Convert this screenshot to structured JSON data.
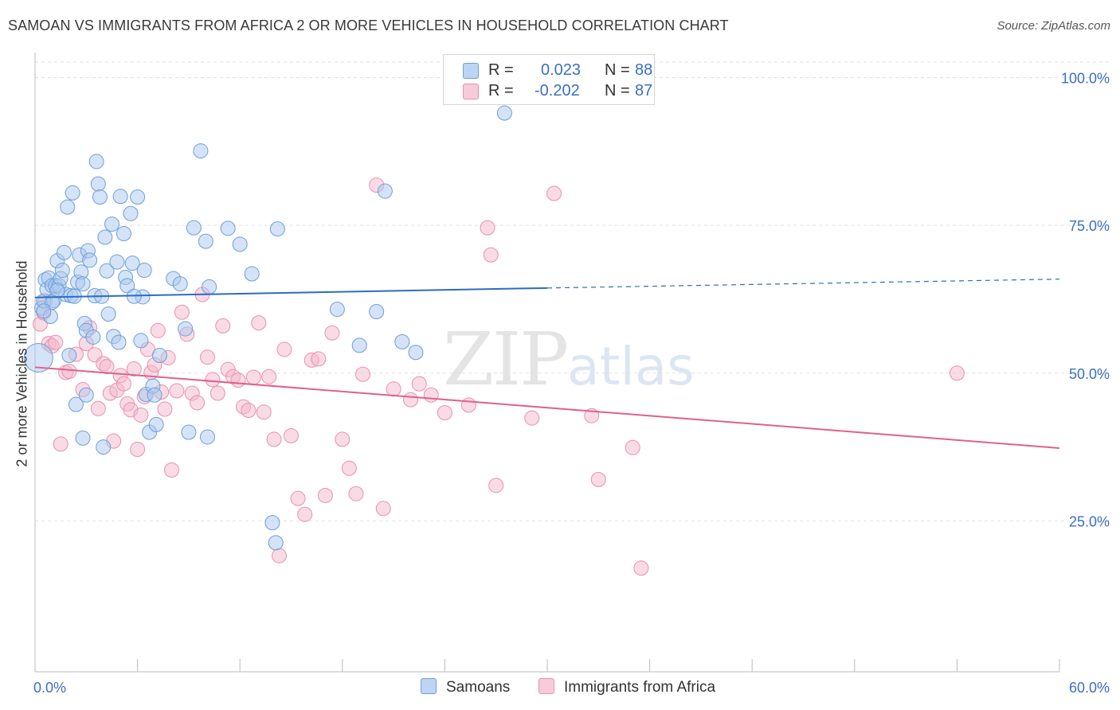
{
  "title": "SAMOAN VS IMMIGRANTS FROM AFRICA 2 OR MORE VEHICLES IN HOUSEHOLD CORRELATION CHART",
  "source": "Source: ZipAtlas.com",
  "watermark": {
    "zip": "ZIP",
    "atlas": "atlas"
  },
  "legend": {
    "rows": [
      {
        "r_label": "R =",
        "r_value": "0.023",
        "n_label": "N =",
        "n_value": "88",
        "color": "#a9c8ef"
      },
      {
        "r_label": "R =",
        "r_value": "-0.202",
        "n_label": "N =",
        "n_value": "87",
        "color": "#f4b8cb"
      }
    ]
  },
  "bottom_legend": {
    "series1": "Samoans",
    "series2": "Immigrants from Africa"
  },
  "colors": {
    "samoans_fill": "#a9c8ef",
    "samoans_stroke": "#6f9fd8",
    "samoans_line": "#2b6cc4",
    "africa_fill": "#f4b8cb",
    "africa_stroke": "#e891ad",
    "africa_line": "#e0608f",
    "tick_label": "#3b6fc4"
  },
  "chart_data": {
    "type": "scatter",
    "title": "SAMOAN VS IMMIGRANTS FROM AFRICA 2 OR MORE VEHICLES IN HOUSEHOLD CORRELATION CHART",
    "xlabel": "",
    "ylabel": "2 or more Vehicles in Household",
    "xlim": [
      0,
      60
    ],
    "ylim": [
      0,
      105
    ],
    "x_tick_labels": [
      "0.0%",
      "60.0%"
    ],
    "y_ticks": [
      25,
      50,
      75,
      100
    ],
    "y_tick_labels": [
      "25.0%",
      "50.0%",
      "75.0%",
      "100.0%"
    ],
    "grid": true,
    "legend_position": "top-center",
    "series": [
      {
        "name": "Samoans",
        "r": 0.023,
        "n": 88,
        "trend": {
          "x0": 0,
          "y0": 62.8,
          "x1": 30,
          "y1": 64.4,
          "dashed_to_x": 60,
          "dashed_to_y": 65.9
        },
        "points": [
          [
            0.2,
            52.6
          ],
          [
            0.4,
            61.0
          ],
          [
            0.5,
            62.2
          ],
          [
            0.6,
            65.8
          ],
          [
            0.7,
            64.2
          ],
          [
            0.8,
            66.1
          ],
          [
            0.9,
            59.6
          ],
          [
            1.0,
            64.8
          ],
          [
            1.1,
            62.3
          ],
          [
            1.2,
            64.8
          ],
          [
            1.3,
            69.0
          ],
          [
            1.4,
            64.8
          ],
          [
            1.5,
            66.0
          ],
          [
            1.6,
            67.4
          ],
          [
            1.7,
            70.4
          ],
          [
            1.8,
            63.3
          ],
          [
            1.9,
            78.1
          ],
          [
            2.0,
            53.0
          ],
          [
            2.1,
            63.1
          ],
          [
            2.2,
            80.5
          ],
          [
            2.3,
            63.0
          ],
          [
            2.5,
            65.4
          ],
          [
            2.6,
            70.0
          ],
          [
            2.7,
            67.1
          ],
          [
            2.8,
            65.1
          ],
          [
            2.9,
            58.4
          ],
          [
            3.0,
            57.2
          ],
          [
            3.1,
            70.7
          ],
          [
            3.2,
            69.1
          ],
          [
            3.4,
            56.1
          ],
          [
            3.5,
            63.1
          ],
          [
            3.6,
            85.8
          ],
          [
            3.7,
            82.0
          ],
          [
            3.8,
            79.8
          ],
          [
            3.9,
            63.0
          ],
          [
            4.1,
            73.0
          ],
          [
            4.2,
            67.3
          ],
          [
            4.3,
            60.0
          ],
          [
            4.5,
            75.2
          ],
          [
            4.6,
            56.2
          ],
          [
            4.8,
            68.8
          ],
          [
            4.9,
            55.2
          ],
          [
            5.0,
            79.9
          ],
          [
            5.2,
            73.6
          ],
          [
            5.3,
            66.2
          ],
          [
            5.4,
            64.8
          ],
          [
            5.6,
            77.0
          ],
          [
            5.7,
            68.6
          ],
          [
            6.0,
            79.8
          ],
          [
            6.2,
            55.5
          ],
          [
            6.3,
            62.9
          ],
          [
            6.4,
            67.4
          ],
          [
            6.5,
            46.4
          ],
          [
            6.7,
            40.0
          ],
          [
            6.9,
            47.8
          ],
          [
            7.1,
            41.3
          ],
          [
            7.3,
            53.0
          ],
          [
            8.1,
            66.0
          ],
          [
            8.5,
            65.1
          ],
          [
            8.8,
            57.5
          ],
          [
            9.3,
            74.6
          ],
          [
            9.7,
            87.6
          ],
          [
            10.0,
            72.3
          ],
          [
            10.2,
            64.6
          ],
          [
            11.3,
            74.5
          ],
          [
            12.0,
            71.8
          ],
          [
            12.7,
            66.8
          ],
          [
            13.9,
            24.7
          ],
          [
            14.2,
            74.4
          ],
          [
            17.7,
            60.8
          ],
          [
            19.0,
            54.7
          ],
          [
            20.0,
            60.4
          ],
          [
            20.5,
            80.8
          ],
          [
            21.5,
            55.3
          ],
          [
            22.3,
            53.5
          ],
          [
            27.5,
            94.0
          ],
          [
            2.8,
            39.0
          ],
          [
            4.0,
            37.5
          ],
          [
            2.4,
            44.7
          ],
          [
            3.0,
            46.3
          ],
          [
            7.0,
            46.3
          ],
          [
            10.1,
            39.2
          ],
          [
            14.1,
            21.3
          ],
          [
            1.3,
            64.0
          ],
          [
            5.8,
            63.0
          ],
          [
            9.0,
            40.0
          ],
          [
            1.0,
            62.0
          ],
          [
            0.5,
            60.5
          ]
        ]
      },
      {
        "name": "Immigrants from Africa",
        "r": -0.202,
        "n": 87,
        "trend": {
          "x0": 0,
          "y0": 51.0,
          "x1": 60,
          "y1": 37.3
        },
        "points": [
          [
            0.3,
            58.3
          ],
          [
            0.5,
            60.2
          ],
          [
            0.6,
            62.2
          ],
          [
            0.8,
            55.0
          ],
          [
            1.0,
            54.6
          ],
          [
            1.2,
            55.2
          ],
          [
            1.5,
            38.0
          ],
          [
            1.8,
            50.1
          ],
          [
            2.0,
            50.3
          ],
          [
            2.4,
            53.2
          ],
          [
            2.8,
            47.2
          ],
          [
            3.0,
            55.0
          ],
          [
            3.2,
            57.7
          ],
          [
            3.5,
            53.1
          ],
          [
            3.7,
            44.0
          ],
          [
            4.0,
            51.6
          ],
          [
            4.2,
            51.1
          ],
          [
            4.4,
            46.6
          ],
          [
            4.6,
            38.5
          ],
          [
            4.8,
            47.1
          ],
          [
            5.0,
            49.6
          ],
          [
            5.2,
            48.2
          ],
          [
            5.4,
            44.8
          ],
          [
            5.6,
            43.8
          ],
          [
            5.8,
            50.7
          ],
          [
            6.0,
            37.1
          ],
          [
            6.2,
            42.9
          ],
          [
            6.4,
            46.0
          ],
          [
            6.6,
            54.0
          ],
          [
            6.8,
            50.1
          ],
          [
            7.0,
            51.4
          ],
          [
            7.2,
            57.2
          ],
          [
            7.4,
            46.8
          ],
          [
            7.6,
            43.9
          ],
          [
            7.8,
            52.6
          ],
          [
            8.0,
            33.6
          ],
          [
            8.3,
            47.0
          ],
          [
            8.6,
            60.3
          ],
          [
            8.9,
            56.6
          ],
          [
            9.2,
            46.6
          ],
          [
            9.5,
            45.0
          ],
          [
            9.8,
            63.3
          ],
          [
            10.1,
            52.7
          ],
          [
            10.4,
            48.9
          ],
          [
            10.7,
            46.6
          ],
          [
            11.0,
            58.0
          ],
          [
            11.3,
            50.6
          ],
          [
            11.6,
            49.4
          ],
          [
            11.9,
            48.8
          ],
          [
            12.2,
            44.3
          ],
          [
            12.5,
            43.7
          ],
          [
            12.8,
            49.3
          ],
          [
            13.1,
            58.5
          ],
          [
            13.4,
            43.4
          ],
          [
            13.7,
            49.4
          ],
          [
            14.0,
            38.8
          ],
          [
            14.3,
            19.1
          ],
          [
            14.6,
            54.0
          ],
          [
            15.0,
            39.4
          ],
          [
            15.4,
            28.8
          ],
          [
            15.8,
            26.1
          ],
          [
            16.2,
            52.2
          ],
          [
            16.6,
            52.4
          ],
          [
            17.0,
            29.3
          ],
          [
            17.4,
            56.8
          ],
          [
            18.0,
            38.8
          ],
          [
            18.4,
            33.9
          ],
          [
            18.8,
            29.6
          ],
          [
            19.2,
            49.8
          ],
          [
            20.0,
            81.8
          ],
          [
            20.4,
            27.1
          ],
          [
            21.0,
            47.3
          ],
          [
            22.0,
            45.5
          ],
          [
            22.5,
            48.2
          ],
          [
            23.2,
            46.3
          ],
          [
            24.0,
            43.3
          ],
          [
            25.4,
            44.6
          ],
          [
            26.5,
            74.6
          ],
          [
            26.7,
            70.0
          ],
          [
            27.0,
            31.0
          ],
          [
            29.1,
            42.4
          ],
          [
            30.4,
            80.4
          ],
          [
            32.6,
            42.8
          ],
          [
            33.0,
            32.0
          ],
          [
            35.0,
            37.4
          ],
          [
            35.5,
            17.0
          ],
          [
            54.0,
            50.0
          ]
        ]
      }
    ]
  }
}
